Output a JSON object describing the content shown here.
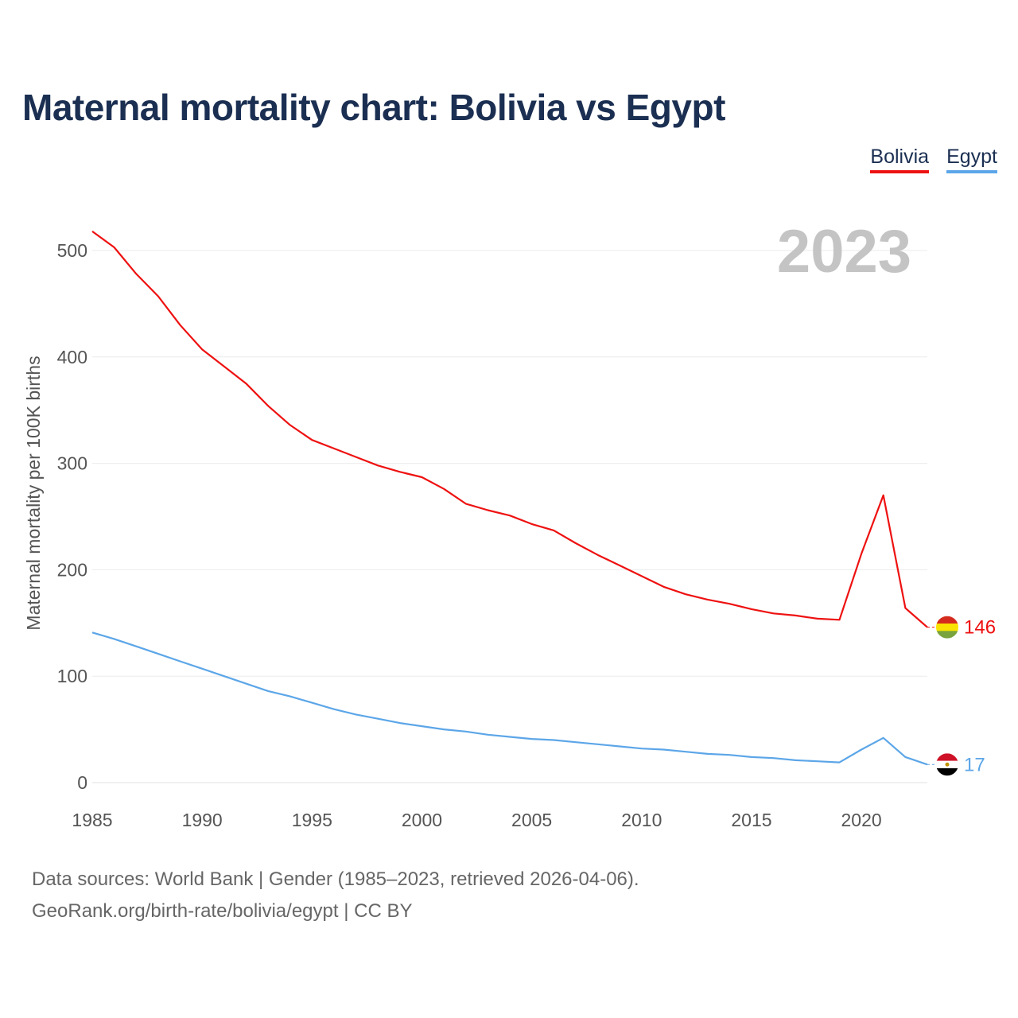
{
  "title": "Maternal mortality chart: Bolivia vs Egypt",
  "legend": [
    {
      "label": "Bolivia",
      "color": "#ee1111"
    },
    {
      "label": "Egypt",
      "color": "#5ca6e8"
    }
  ],
  "sources": {
    "line1": "Data sources: World Bank | Gender (1985–2023, retrieved 2026-04-06).",
    "line2": "GeoRank.org/birth-rate/bolivia/egypt | CC BY"
  },
  "chart_data": {
    "type": "line",
    "title": "Maternal mortality chart: Bolivia vs Egypt",
    "xlabel": "",
    "ylabel": "Maternal mortality per 100K births",
    "overlay_year": "2023",
    "xlim": [
      1985,
      2023
    ],
    "ylim": [
      0,
      520
    ],
    "x_ticks": [
      1985,
      1990,
      1995,
      2000,
      2005,
      2010,
      2015,
      2020
    ],
    "y_ticks": [
      0,
      100,
      200,
      300,
      400,
      500
    ],
    "grid": true,
    "legend_position": "top-right",
    "x": [
      1985,
      1986,
      1987,
      1988,
      1989,
      1990,
      1991,
      1992,
      1993,
      1994,
      1995,
      1996,
      1997,
      1998,
      1999,
      2000,
      2001,
      2002,
      2003,
      2004,
      2005,
      2006,
      2007,
      2008,
      2009,
      2010,
      2011,
      2012,
      2013,
      2014,
      2015,
      2016,
      2017,
      2018,
      2019,
      2020,
      2021,
      2022,
      2023
    ],
    "series": [
      {
        "name": "Bolivia",
        "color": "#ee1111",
        "flag": "bolivia-flag",
        "end_label": "146",
        "values": [
          518,
          503,
          478,
          457,
          430,
          407,
          391,
          375,
          354,
          336,
          322,
          314,
          306,
          298,
          292,
          287,
          276,
          262,
          256,
          251,
          243,
          237,
          225,
          214,
          204,
          194,
          184,
          177,
          172,
          168,
          163,
          159,
          157,
          154,
          153,
          215,
          270,
          164,
          146
        ]
      },
      {
        "name": "Egypt",
        "color": "#5ca6e8",
        "flag": "egypt-flag",
        "end_label": "17",
        "values": [
          141,
          135,
          128,
          121,
          114,
          107,
          100,
          93,
          86,
          81,
          75,
          69,
          64,
          60,
          56,
          53,
          50,
          48,
          45,
          43,
          41,
          40,
          38,
          36,
          34,
          32,
          31,
          29,
          27,
          26,
          24,
          23,
          21,
          20,
          19,
          31,
          42,
          24,
          17
        ]
      }
    ]
  }
}
